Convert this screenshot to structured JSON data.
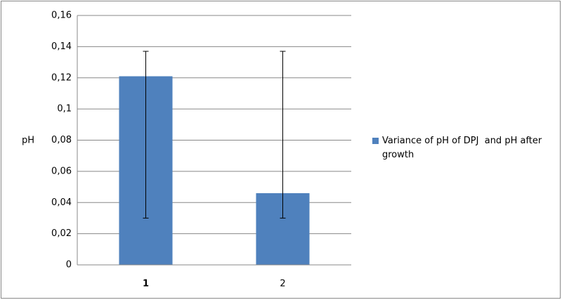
{
  "chart_data": {
    "type": "bar",
    "y_label": "pH",
    "categories": [
      "1",
      "2"
    ],
    "series": [
      {
        "name": "Variance of pH of DPJ  and pH after  growth",
        "color": "#4f81bd",
        "values": [
          0.121,
          0.046
        ],
        "error_plus": [
          0.016,
          0.091
        ],
        "error_minus": [
          0.091,
          0.016
        ]
      }
    ],
    "ylim": [
      0,
      0.16
    ],
    "yticks": [
      0,
      {
        "value": 0.02,
        "label": "0,02"
      },
      {
        "value": 0.04,
        "label": "0,04"
      },
      {
        "value": 0.06,
        "label": "0,06"
      },
      {
        "value": 0.08,
        "label": "0,08"
      },
      {
        "value": 0.1,
        "label": "0,1"
      },
      {
        "value": 0.12,
        "label": "0,12"
      },
      {
        "value": 0.14,
        "label": "0,14"
      },
      {
        "value": 0.16,
        "label": "0,16"
      }
    ],
    "grid": true,
    "legend": "right"
  }
}
